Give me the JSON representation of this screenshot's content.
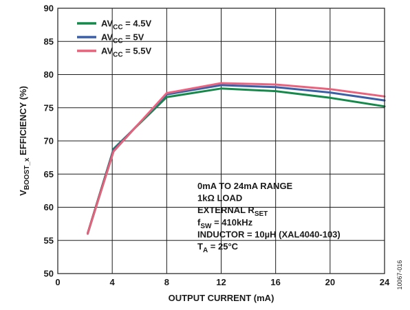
{
  "chart_data": {
    "type": "line",
    "xlabel": "OUTPUT CURRENT (mA)",
    "ylabel_main": "V",
    "ylabel_sub": "BOOST_x",
    "ylabel_rest": " EFFICIENCY (%)",
    "xlim": [
      0,
      24
    ],
    "ylim": [
      50,
      90
    ],
    "xticks": [
      0,
      4,
      8,
      12,
      16,
      20,
      24
    ],
    "yticks": [
      50,
      55,
      60,
      65,
      70,
      75,
      80,
      85,
      90
    ],
    "grid": true,
    "legend_position": "top-left",
    "series": [
      {
        "name_main": "AV",
        "name_sub": "CC",
        "name_rest": " = 4.5V",
        "color": "#138a4a",
        "x": [
          2.2,
          4.1,
          8,
          12,
          16,
          20,
          24
        ],
        "y": [
          56.1,
          68.8,
          76.6,
          77.9,
          77.5,
          76.5,
          75.2
        ]
      },
      {
        "name_main": "AV",
        "name_sub": "CC",
        "name_rest": " = 5V",
        "color": "#3b5fa6",
        "x": [
          2.2,
          4.1,
          8,
          12,
          16,
          20,
          24
        ],
        "y": [
          56.0,
          68.6,
          77.0,
          78.4,
          78.1,
          77.3,
          76.1
        ]
      },
      {
        "name_main": "AV",
        "name_sub": "CC",
        "name_rest": " = 5.5V",
        "color": "#e8627c",
        "x": [
          2.2,
          4.1,
          8,
          12,
          16,
          20,
          24
        ],
        "y": [
          56.0,
          68.4,
          77.2,
          78.7,
          78.5,
          77.8,
          76.7
        ]
      }
    ],
    "annotation": [
      {
        "main": "0mA TO 24mA RANGE",
        "sub": "",
        "rest": ""
      },
      {
        "main": "1kΩ LOAD",
        "sub": "",
        "rest": ""
      },
      {
        "main": "EXTERNAL R",
        "sub": "SET",
        "rest": ""
      },
      {
        "main": "f",
        "sub": "SW",
        "rest": " = 410kHz"
      },
      {
        "main": "INDUCTOR = 10µH (XAL4040-103)",
        "sub": "",
        "rest": ""
      },
      {
        "main": "T",
        "sub": "A",
        "rest": " = 25°C"
      }
    ],
    "figure_id": "10067-016"
  }
}
